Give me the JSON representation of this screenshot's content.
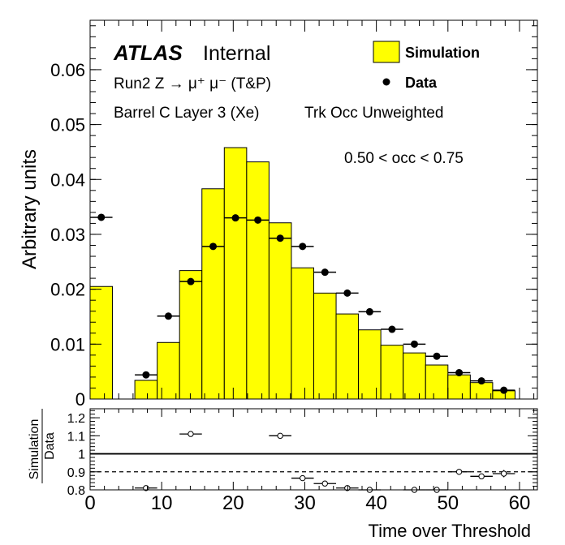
{
  "chart_data": [
    {
      "type": "bar",
      "title": "",
      "ylabel": "Arbitrary units",
      "xlabel": "",
      "xlim": [
        0,
        62.5
      ],
      "ylim": [
        0,
        0.069
      ],
      "y_ticks": [
        0,
        0.01,
        0.02,
        0.03,
        0.04,
        0.05,
        0.06
      ],
      "y_tick_labels": [
        "0",
        "0.01",
        "0.02",
        "0.03",
        "0.04",
        "0.05",
        "0.06"
      ],
      "bin_edges": [
        0,
        3.125,
        6.25,
        9.375,
        12.5,
        15.625,
        18.75,
        21.875,
        25,
        28.125,
        31.25,
        34.375,
        37.5,
        40.625,
        43.75,
        46.875,
        50,
        53.125,
        56.25,
        59.375,
        62.5
      ],
      "legend_position": "top-right",
      "series": [
        {
          "name": "Simulation",
          "style": "filled-histogram",
          "color": "#ffff00",
          "values": [
            0.0205,
            0,
            0.0034,
            0.0103,
            0.0234,
            0.0383,
            0.0458,
            0.0432,
            0.0321,
            0.0239,
            0.0193,
            0.0155,
            0.0126,
            0.0098,
            0.0084,
            0.0062,
            0.0044,
            0.003,
            0.0015,
            0
          ]
        },
        {
          "name": "Data",
          "style": "markers",
          "color": "#000000",
          "values": [
            0.0331,
            null,
            0.0044,
            0.0151,
            0.0214,
            0.0278,
            0.033,
            0.0326,
            0.0293,
            0.0278,
            0.0231,
            0.0193,
            0.0159,
            0.0127,
            0.01,
            0.0078,
            0.0048,
            0.0033,
            0.0016,
            null
          ]
        }
      ],
      "annotations": {
        "atlas": "ATLAS",
        "internal": "Internal",
        "line1": "Run2 Z → μ⁺ μ⁻ (T&P)",
        "line2": "Barrel C Layer 3 (Xe)",
        "line3": "Trk Occ Unweighted",
        "cut": "0.50 < occ < 0.75"
      }
    },
    {
      "type": "scatter",
      "ylabel": "Simulation∕Data",
      "ylabel_top": "Simulation",
      "ylabel_bottom": "Data",
      "xlabel": "Time over Threshold",
      "xlim": [
        0,
        62.5
      ],
      "ylim": [
        0.8,
        1.25
      ],
      "x_ticks": [
        0,
        10,
        20,
        30,
        40,
        50,
        60
      ],
      "x_tick_labels": [
        "0",
        "10",
        "20",
        "30",
        "40",
        "50",
        "60"
      ],
      "y_ticks": [
        0.8,
        0.9,
        1,
        1.1,
        1.2
      ],
      "y_tick_labels": [
        "0.8",
        "0.9",
        "1",
        "1.1",
        "1.2"
      ],
      "reference_lines": [
        1.0,
        0.9
      ],
      "series": [
        {
          "name": "",
          "x": [
            7.81,
            14.06,
            26.56,
            29.69,
            32.81,
            35.94,
            39.06,
            45.31,
            48.44,
            51.56,
            54.69,
            57.81
          ],
          "values": [
            0.81,
            1.11,
            1.1,
            0.865,
            0.835,
            0.81,
            0.8,
            0.8,
            0.8,
            0.9,
            0.875,
            0.89
          ],
          "y_err": [
            0,
            0,
            0,
            0,
            0,
            0,
            0,
            0,
            0,
            0,
            0,
            0.02
          ]
        }
      ]
    }
  ]
}
